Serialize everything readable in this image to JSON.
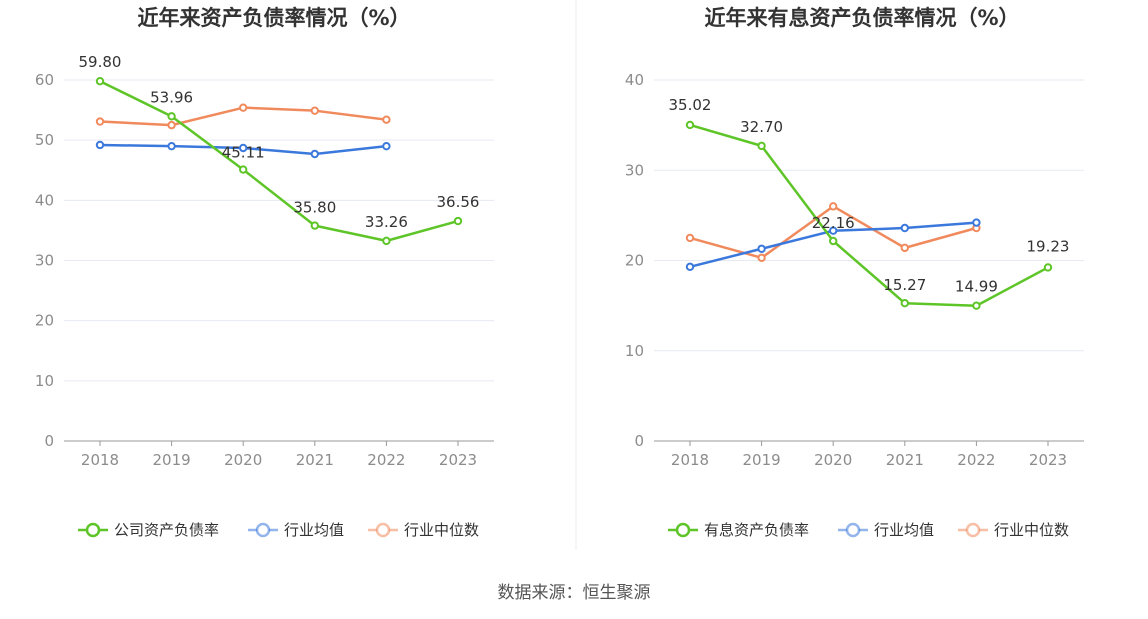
{
  "source_text": "数据来源：恒生聚源",
  "colors": {
    "company": "#5ec528",
    "avg": "#3b78dc",
    "median": "#f08a5d",
    "grid": "#e6e9f2",
    "axis": "#999999"
  },
  "chart_data": [
    {
      "type": "line",
      "title": "近年来资产负债率情况（%）",
      "categories": [
        "2018",
        "2019",
        "2020",
        "2021",
        "2022",
        "2023"
      ],
      "ylim": [
        0,
        60
      ],
      "yticks": [
        0,
        10,
        20,
        30,
        40,
        50,
        60
      ],
      "ytick_labels": [
        "0",
        "10",
        "20",
        "30",
        "40",
        "50",
        "60"
      ],
      "series": [
        {
          "name": "公司资产负债率",
          "key": "company",
          "values": [
            59.8,
            53.96,
            45.11,
            35.8,
            33.26,
            36.56
          ],
          "labels": [
            "59.80",
            "53.96",
            "45.11",
            "35.80",
            "33.26",
            "36.56"
          ]
        },
        {
          "name": "行业均值",
          "key": "avg",
          "values": [
            49.2,
            49.0,
            48.7,
            47.7,
            49.0,
            null
          ]
        },
        {
          "name": "行业中位数",
          "key": "median",
          "values": [
            53.1,
            52.5,
            55.4,
            54.9,
            53.4,
            null
          ]
        }
      ]
    },
    {
      "type": "line",
      "title": "近年来有息资产负债率情况（%）",
      "categories": [
        "2018",
        "2019",
        "2020",
        "2021",
        "2022",
        "2023"
      ],
      "ylim": [
        0,
        40
      ],
      "yticks": [
        0,
        10,
        20,
        30,
        40
      ],
      "ytick_labels": [
        "0",
        "10",
        "20",
        "30",
        "40"
      ],
      "series": [
        {
          "name": "有息资产负债率",
          "key": "company",
          "values": [
            35.02,
            32.7,
            22.16,
            15.27,
            14.99,
            19.23
          ],
          "labels": [
            "35.02",
            "32.70",
            "22.16",
            "15.27",
            "14.99",
            "19.23"
          ]
        },
        {
          "name": "行业均值",
          "key": "avg",
          "values": [
            19.3,
            21.3,
            23.3,
            23.6,
            24.2,
            null
          ]
        },
        {
          "name": "行业中位数",
          "key": "median",
          "values": [
            22.5,
            20.3,
            26.0,
            21.4,
            23.6,
            null
          ]
        }
      ]
    }
  ]
}
